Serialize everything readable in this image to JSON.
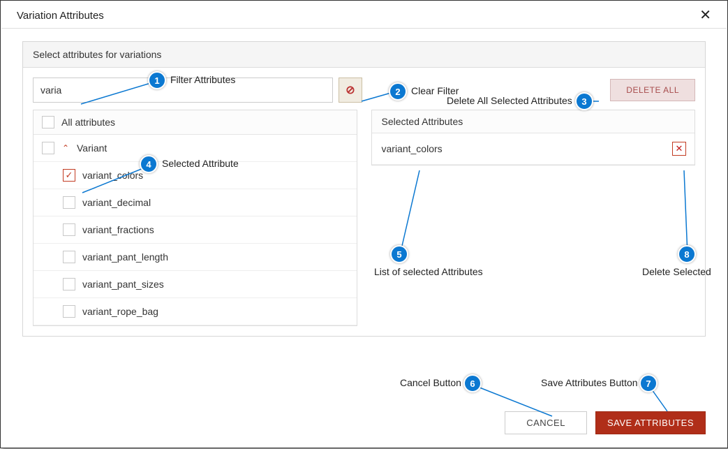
{
  "modal": {
    "title": "Variation Attributes",
    "panel_title": "Select attributes for variations",
    "filter_value": "varia",
    "all_label": "All attributes",
    "selected_label": "Selected Attributes",
    "delete_all_label": "DELETE ALL",
    "group_label": "Variant",
    "attrs": [
      {
        "label": "variant_colors",
        "checked": true
      },
      {
        "label": "variant_decimal",
        "checked": false
      },
      {
        "label": "variant_fractions",
        "checked": false
      },
      {
        "label": "variant_pant_length",
        "checked": false
      },
      {
        "label": "variant_pant_sizes",
        "checked": false
      },
      {
        "label": "variant_rope_bag",
        "checked": false
      }
    ],
    "selected": [
      {
        "label": "variant_colors"
      }
    ]
  },
  "footer": {
    "cancel": "CANCEL",
    "save": "SAVE ATTRIBUTES"
  },
  "callouts": {
    "1": "Filter Attributes",
    "2": "Clear Filter",
    "3": "Delete All Selected Attributes",
    "4": "Selected Attribute",
    "5": "List of selected Attributes",
    "6": "Cancel Button",
    "7": "Save Attributes Button",
    "8": "Delete Selected"
  },
  "colors": {
    "badge_bg": "#0b78d1",
    "primary": "#b02e19",
    "danger_soft_bg": "#efdfdf"
  }
}
